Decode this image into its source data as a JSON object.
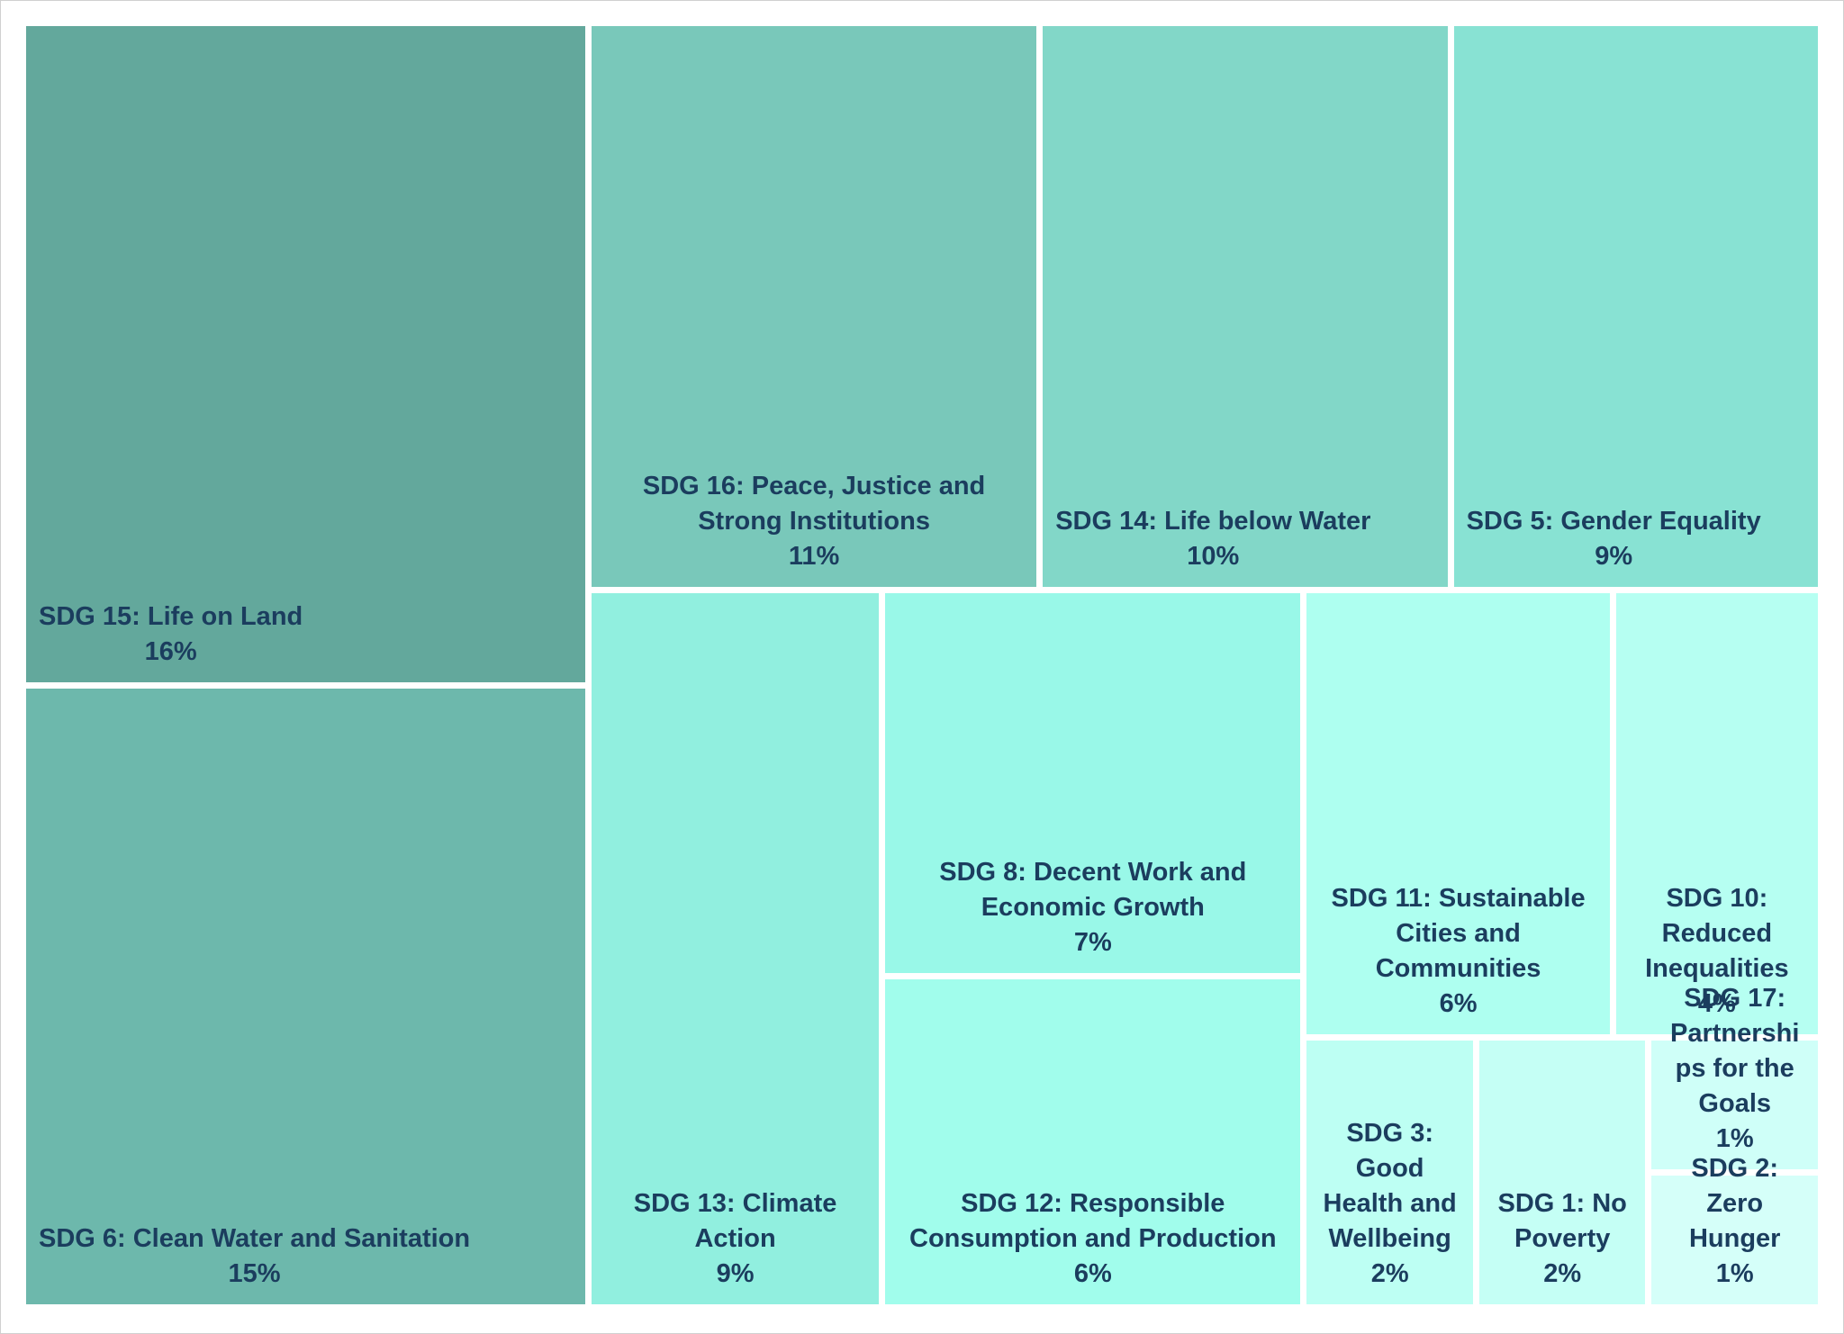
{
  "chart_data": {
    "type": "treemap",
    "categories": [
      "SDG 15: Life on Land",
      "SDG 6: Clean Water and Sanitation",
      "SDG 16: Peace, Justice and Strong Institutions",
      "SDG 14: Life below Water",
      "SDG 5: Gender Equality",
      "SDG 13: Climate Action",
      "SDG 8: Decent Work and Economic Growth",
      "SDG 12: Responsible Consumption and Production",
      "SDG 11: Sustainable Cities and Communities",
      "SDG 10: Reduced Inequalities",
      "SDG 3: Good Health and Wellbeing",
      "SDG 1: No Poverty",
      "SDG 17: Partnerships for the Goals",
      "SDG 2: Zero Hunger"
    ],
    "values": [
      16,
      15,
      11,
      10,
      9,
      9,
      7,
      6,
      6,
      4,
      2,
      2,
      1,
      1
    ],
    "value_labels": [
      "16%",
      "15%",
      "11%",
      "10%",
      "9%",
      "9%",
      "7%",
      "6%",
      "6%",
      "4%",
      "2%",
      "2%",
      "1%",
      "1%"
    ],
    "colors": [
      "#63a89c",
      "#6db8ac",
      "#79c8ba",
      "#82d7c8",
      "#88e2d3",
      "#91efdf",
      "#99f8e8",
      "#a1fdec",
      "#aefff0",
      "#b6fff2",
      "#bdfff3",
      "#c5fff5",
      "#cffff8",
      "#d5fff9"
    ]
  }
}
